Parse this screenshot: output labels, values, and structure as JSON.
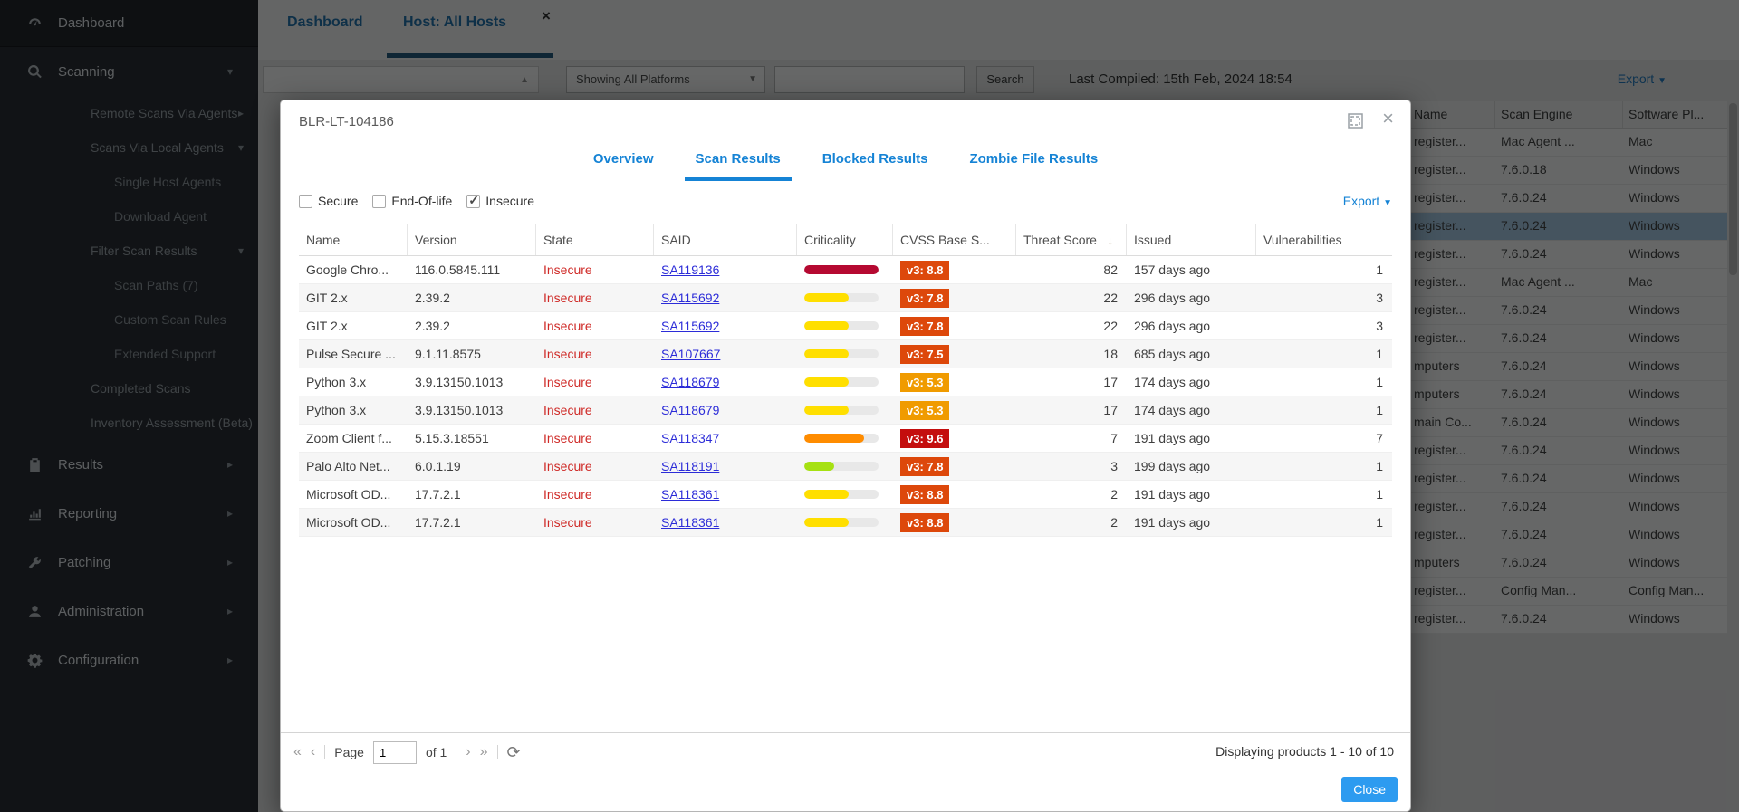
{
  "sidebar": {
    "items": [
      {
        "label": "Dashboard",
        "level": 0,
        "icon": "gauge-icon",
        "chevron": "none",
        "first": true
      },
      {
        "label": "Scanning",
        "level": 0,
        "icon": "magnifier-icon",
        "chevron": "down"
      },
      {
        "label": "Remote Scans Via Agents",
        "level": 1,
        "chevron": "right"
      },
      {
        "label": "Scans Via Local Agents",
        "level": 1,
        "chevron": "down"
      },
      {
        "label": "Single Host Agents",
        "level": 2,
        "chevron": "none"
      },
      {
        "label": "Download Agent",
        "level": 2,
        "chevron": "none"
      },
      {
        "label": "Filter Scan Results",
        "level": 1,
        "chevron": "down"
      },
      {
        "label": "Scan Paths (7)",
        "level": 2,
        "chevron": "none"
      },
      {
        "label": "Custom Scan Rules",
        "level": 2,
        "chevron": "none"
      },
      {
        "label": "Extended Support",
        "level": 2,
        "chevron": "none"
      },
      {
        "label": "Completed Scans",
        "level": 1,
        "chevron": "none"
      },
      {
        "label": "Inventory Assessment (Beta)",
        "level": 1,
        "chevron": "none"
      },
      {
        "label": "Results",
        "level": 0,
        "icon": "clipboard-icon",
        "chevron": "right"
      },
      {
        "label": "Reporting",
        "level": 0,
        "icon": "bar-chart-icon",
        "chevron": "right"
      },
      {
        "label": "Patching",
        "level": 0,
        "icon": "wrench-icon",
        "chevron": "right"
      },
      {
        "label": "Administration",
        "level": 0,
        "icon": "person-icon",
        "chevron": "right"
      },
      {
        "label": "Configuration",
        "level": 0,
        "icon": "gear-icon",
        "chevron": "right"
      }
    ]
  },
  "main": {
    "tabs": [
      {
        "label": "Dashboard",
        "active": false
      },
      {
        "label": "Host: All Hosts",
        "active": true
      }
    ],
    "tab_close": "×",
    "toolbar": {
      "platform_select": "Showing All Platforms",
      "search_button": "Search",
      "last_compiled": "Last Compiled: 15th Feb, 2024 18:54",
      "export_label": "Export"
    },
    "bg_grid": {
      "headers": [
        "Name",
        "Scan Engine",
        "Software Pl..."
      ],
      "rows": [
        {
          "c1": "register...",
          "c2": "Mac Agent ...",
          "c3": "Mac",
          "selected": false
        },
        {
          "c1": "register...",
          "c2": "7.6.0.18",
          "c3": "Windows",
          "selected": false
        },
        {
          "c1": "register...",
          "c2": "7.6.0.24",
          "c3": "Windows",
          "selected": false
        },
        {
          "c1": "register...",
          "c2": "7.6.0.24",
          "c3": "Windows",
          "selected": true
        },
        {
          "c1": "register...",
          "c2": "7.6.0.24",
          "c3": "Windows",
          "selected": false
        },
        {
          "c1": "register...",
          "c2": "Mac Agent ...",
          "c3": "Mac",
          "selected": false
        },
        {
          "c1": "register...",
          "c2": "7.6.0.24",
          "c3": "Windows",
          "selected": false
        },
        {
          "c1": "register...",
          "c2": "7.6.0.24",
          "c3": "Windows",
          "selected": false
        },
        {
          "c1": "mputers",
          "c2": "7.6.0.24",
          "c3": "Windows",
          "selected": false
        },
        {
          "c1": "mputers",
          "c2": "7.6.0.24",
          "c3": "Windows",
          "selected": false
        },
        {
          "c1": "main Co...",
          "c2": "7.6.0.24",
          "c3": "Windows",
          "selected": false
        },
        {
          "c1": "register...",
          "c2": "7.6.0.24",
          "c3": "Windows",
          "selected": false
        },
        {
          "c1": "register...",
          "c2": "7.6.0.24",
          "c3": "Windows",
          "selected": false
        },
        {
          "c1": "register...",
          "c2": "7.6.0.24",
          "c3": "Windows",
          "selected": false
        },
        {
          "c1": "register...",
          "c2": "7.6.0.24",
          "c3": "Windows",
          "selected": false
        },
        {
          "c1": "mputers",
          "c2": "7.6.0.24",
          "c3": "Windows",
          "selected": false
        },
        {
          "c1": "register...",
          "c2": "Config Man...",
          "c3": "Config Man...",
          "selected": false
        },
        {
          "c1": "register...",
          "c2": "7.6.0.24",
          "c3": "Windows",
          "selected": false
        }
      ]
    }
  },
  "modal": {
    "title": "BLR-LT-104186",
    "close_glyph": "×",
    "tabs": [
      {
        "label": "Overview",
        "active": false
      },
      {
        "label": "Scan Results",
        "active": true
      },
      {
        "label": "Blocked Results",
        "active": false
      },
      {
        "label": "Zombie File Results",
        "active": false
      }
    ],
    "filters": [
      {
        "label": "Secure",
        "checked": false
      },
      {
        "label": "End-Of-life",
        "checked": false
      },
      {
        "label": "Insecure",
        "checked": true
      }
    ],
    "export_label": "Export",
    "table": {
      "headers": [
        "Name",
        "Version",
        "State",
        "SAID",
        "Criticality",
        "CVSS Base S...",
        "Threat Score",
        "Issued",
        "Vulnerabilities"
      ],
      "sorted_column": "Threat Score",
      "rows": [
        {
          "name": "Google Chro...",
          "version": "116.0.5845.111",
          "state": "Insecure",
          "said": "SA119136",
          "criticality": {
            "pct": 100,
            "color": "#b50931"
          },
          "cvss": {
            "label": "v3: 8.8",
            "color": "#dd480b"
          },
          "threat_score": "82",
          "issued": "157 days ago",
          "vulnerabilities": "1"
        },
        {
          "name": "GIT 2.x",
          "version": "2.39.2",
          "state": "Insecure",
          "said": "SA115692",
          "criticality": {
            "pct": 60,
            "color": "#ffdf00"
          },
          "cvss": {
            "label": "v3: 7.8",
            "color": "#dd480b"
          },
          "threat_score": "22",
          "issued": "296 days ago",
          "vulnerabilities": "3"
        },
        {
          "name": "GIT 2.x",
          "version": "2.39.2",
          "state": "Insecure",
          "said": "SA115692",
          "criticality": {
            "pct": 60,
            "color": "#ffdf00"
          },
          "cvss": {
            "label": "v3: 7.8",
            "color": "#dd480b"
          },
          "threat_score": "22",
          "issued": "296 days ago",
          "vulnerabilities": "3"
        },
        {
          "name": "Pulse Secure ...",
          "version": "9.1.11.8575",
          "state": "Insecure",
          "said": "SA107667",
          "criticality": {
            "pct": 60,
            "color": "#ffdf00"
          },
          "cvss": {
            "label": "v3: 7.5",
            "color": "#dd480b"
          },
          "threat_score": "18",
          "issued": "685 days ago",
          "vulnerabilities": "1"
        },
        {
          "name": "Python 3.x",
          "version": "3.9.13150.1013",
          "state": "Insecure",
          "said": "SA118679",
          "criticality": {
            "pct": 60,
            "color": "#ffdf00"
          },
          "cvss": {
            "label": "v3: 5.3",
            "color": "#f09b00"
          },
          "threat_score": "17",
          "issued": "174 days ago",
          "vulnerabilities": "1"
        },
        {
          "name": "Python 3.x",
          "version": "3.9.13150.1013",
          "state": "Insecure",
          "said": "SA118679",
          "criticality": {
            "pct": 60,
            "color": "#ffdf00"
          },
          "cvss": {
            "label": "v3: 5.3",
            "color": "#f09b00"
          },
          "threat_score": "17",
          "issued": "174 days ago",
          "vulnerabilities": "1"
        },
        {
          "name": "Zoom Client f...",
          "version": "5.15.3.18551",
          "state": "Insecure",
          "said": "SA118347",
          "criticality": {
            "pct": 80,
            "color": "#ff8c00"
          },
          "cvss": {
            "label": "v3: 9.6",
            "color": "#c40e0e"
          },
          "threat_score": "7",
          "issued": "191 days ago",
          "vulnerabilities": "7"
        },
        {
          "name": "Palo Alto Net...",
          "version": "6.0.1.19",
          "state": "Insecure",
          "said": "SA118191",
          "criticality": {
            "pct": 40,
            "color": "#a6e112"
          },
          "cvss": {
            "label": "v3: 7.8",
            "color": "#dd480b"
          },
          "threat_score": "3",
          "issued": "199 days ago",
          "vulnerabilities": "1"
        },
        {
          "name": "Microsoft OD...",
          "version": "17.7.2.1",
          "state": "Insecure",
          "said": "SA118361",
          "criticality": {
            "pct": 60,
            "color": "#ffdf00"
          },
          "cvss": {
            "label": "v3: 8.8",
            "color": "#dd480b"
          },
          "threat_score": "2",
          "issued": "191 days ago",
          "vulnerabilities": "1"
        },
        {
          "name": "Microsoft OD...",
          "version": "17.7.2.1",
          "state": "Insecure",
          "said": "SA118361",
          "criticality": {
            "pct": 60,
            "color": "#ffdf00"
          },
          "cvss": {
            "label": "v3: 8.8",
            "color": "#dd480b"
          },
          "threat_score": "2",
          "issued": "191 days ago",
          "vulnerabilities": "1"
        }
      ]
    },
    "pager": {
      "page_label": "Page",
      "page_value": "1",
      "of_label": "of 1",
      "status": "Displaying products 1 - 10 of 10"
    },
    "close_button": "Close"
  },
  "colors": {
    "accent_blue": "#1583d5",
    "close_button_blue": "#2d9bf0",
    "link_blue": "#2c2cd8",
    "insecure_red": "#cf2a27",
    "selected_row": "#a9cdeb",
    "active_tab_underline": "#1c567c"
  }
}
